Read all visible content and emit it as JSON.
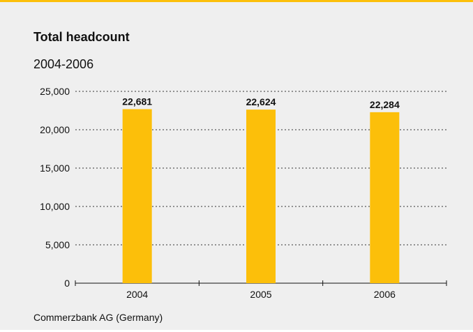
{
  "chart_data": {
    "type": "bar",
    "title": "Total headcount",
    "subtitle": "2004-2006",
    "categories": [
      "2004",
      "2005",
      "2006"
    ],
    "values": [
      22681,
      22624,
      22284
    ],
    "value_labels": [
      "22,681",
      "22,624",
      "22,284"
    ],
    "ylim": [
      0,
      25000
    ],
    "yticks": [
      0,
      5000,
      10000,
      15000,
      20000,
      25000
    ],
    "ytick_labels": [
      "0",
      "5,000",
      "10,000",
      "15,000",
      "20,000",
      "25,000"
    ],
    "grid": "dotted horizontal",
    "xlabel": "",
    "ylabel": "",
    "bar_color": "#fcbf0a",
    "accent_color": "#fcbf0a",
    "background_color": "#efefef"
  },
  "source": "Commerzbank AG (Germany)"
}
